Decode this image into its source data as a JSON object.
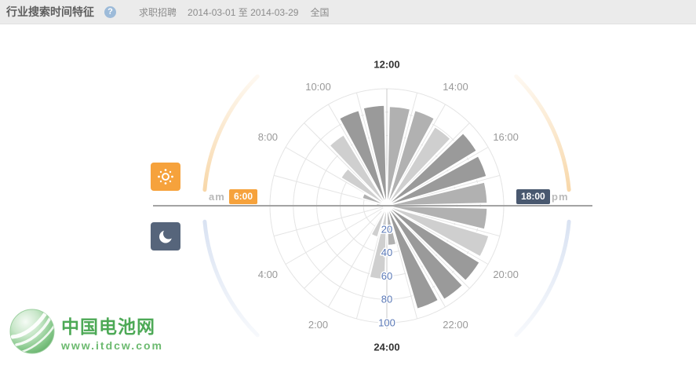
{
  "header": {
    "title": "行业搜索时间特征",
    "help_icon": "?",
    "category": "求职招聘",
    "date_range": "2014-03-01 至 2014-03-29",
    "region": "全国"
  },
  "clock_panel": {
    "am_label": "am",
    "am_time": "6:00",
    "pm_time": "18:00",
    "pm_label": "pm",
    "sun_color": "#F6A23C",
    "moon_color": "#56657B",
    "day_arc_color": "#F7D3A0",
    "night_arc_color": "#D6E0F1"
  },
  "chart_data": {
    "type": "bar",
    "coordinate": "polar-24h-clock",
    "categories": [
      "0:00",
      "1:00",
      "2:00",
      "3:00",
      "4:00",
      "5:00",
      "6:00",
      "7:00",
      "8:00",
      "9:00",
      "10:00",
      "11:00",
      "12:00",
      "13:00",
      "14:00",
      "15:00",
      "16:00",
      "17:00",
      "18:00",
      "19:00",
      "20:00",
      "21:00",
      "22:00",
      "23:00"
    ],
    "values": [
      63,
      28,
      6,
      3,
      2,
      3,
      9,
      22,
      46,
      71,
      85,
      86,
      85,
      85,
      79,
      90,
      89,
      86,
      86,
      91,
      93,
      94,
      92,
      34
    ],
    "shades": [
      "light",
      "light",
      "light",
      "light",
      "light",
      "light",
      "light",
      "medium",
      "light",
      "light",
      "dark",
      "dark",
      "medium",
      "medium",
      "light",
      "dark",
      "dark",
      "medium",
      "medium",
      "light",
      "dark",
      "dark",
      "dark",
      "medium"
    ],
    "shade_colors": {
      "light": "#cfcfcf",
      "medium": "#b1b1b1",
      "dark": "#9a9a9a"
    },
    "radial_ticks": [
      20,
      40,
      60,
      80,
      100
    ],
    "rmax": 100,
    "hour_labels": [
      {
        "text": "12:00",
        "hour": 12,
        "bold": true
      },
      {
        "text": "14:00",
        "hour": 14,
        "bold": false
      },
      {
        "text": "16:00",
        "hour": 16,
        "bold": false
      },
      {
        "text": "20:00",
        "hour": 20,
        "bold": false
      },
      {
        "text": "22:00",
        "hour": 22,
        "bold": false
      },
      {
        "text": "24:00",
        "hour": 24,
        "bold": true
      },
      {
        "text": "2:00",
        "hour": 2,
        "bold": false
      },
      {
        "text": "4:00",
        "hour": 4,
        "bold": false
      },
      {
        "text": "8:00",
        "hour": 8,
        "bold": false
      },
      {
        "text": "10:00",
        "hour": 10,
        "bold": false
      }
    ],
    "tick_color": "#5b79b7",
    "label_color": "#999999",
    "label_bold_color": "#333333",
    "grid_color": "#e4e4e4",
    "axis_color": "#c9c9c9",
    "divider_color": "#a3a3a3",
    "legend_position": "none",
    "grid": true
  },
  "watermark": {
    "line1": "中国电池网",
    "line2": "www.itdcw.com"
  }
}
